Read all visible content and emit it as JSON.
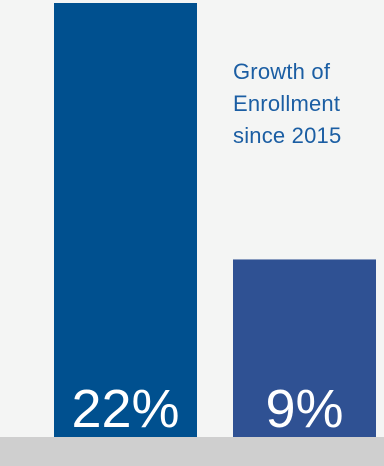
{
  "chart_data": {
    "type": "bar",
    "categories": [
      "",
      ""
    ],
    "values": [
      22,
      9
    ],
    "value_labels": [
      "22%",
      "9%"
    ],
    "bar_colors": [
      "#00508f",
      "#2f5193"
    ],
    "title": "",
    "xlabel": "",
    "ylabel": "",
    "annotation_lines": [
      "Growth of",
      "Enrollment",
      "since 2015"
    ],
    "annotation_color": "#1b5ea3",
    "baseline_color": "#cfcfcf",
    "value_label_color": "#ffffff",
    "background_color": "#f4f5f4",
    "ylim": [
      0,
      22
    ],
    "grid": false,
    "legend": "none"
  }
}
